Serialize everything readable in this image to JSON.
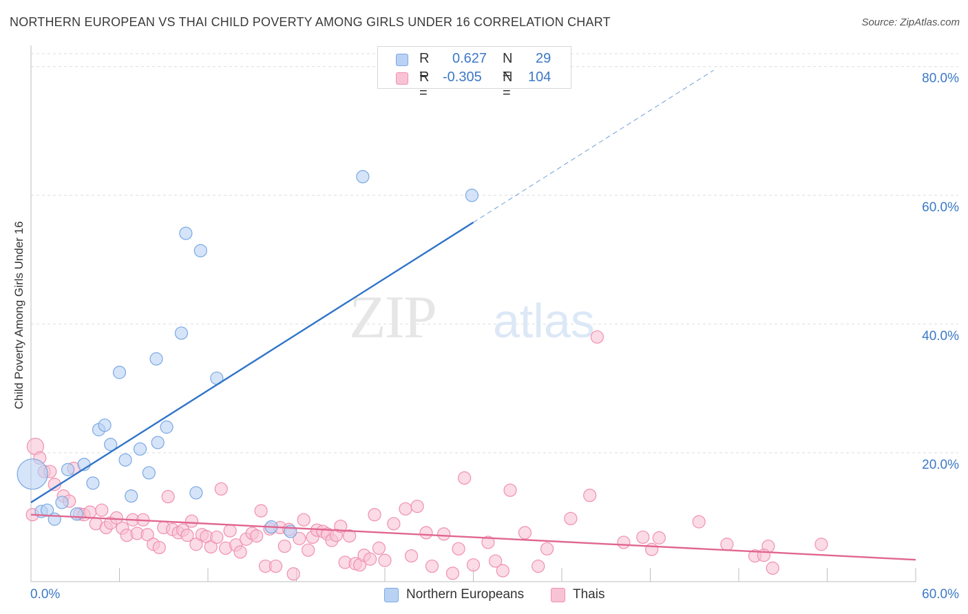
{
  "header": {
    "title": "NORTHERN EUROPEAN VS THAI CHILD POVERTY AMONG GIRLS UNDER 16 CORRELATION CHART",
    "source": "Source: ZipAtlas.com"
  },
  "watermark": {
    "zip": "ZIP",
    "atlas": "atlas"
  },
  "legend_stats": {
    "northern": {
      "r_label": "R =",
      "r_value": "0.627",
      "n_label": "N =",
      "n_value": "29"
    },
    "thai": {
      "r_label": "R =",
      "r_value": "-0.305",
      "n_label": "N =",
      "n_value": "104"
    }
  },
  "colors": {
    "northern_fill": "#b9d2f3",
    "northern_stroke": "#7aa8e3",
    "northern_line": "#2f74c8",
    "thai_fill": "#f8c3d4",
    "thai_stroke": "#f08fb0",
    "thai_line": "#e0668f",
    "axis_text": "#3b78c6",
    "grid": "#dcdcdc"
  },
  "chart_data": {
    "type": "scatter",
    "title": "NORTHERN EUROPEAN VS THAI CHILD POVERTY AMONG GIRLS UNDER 16 CORRELATION CHART",
    "xlabel": "",
    "ylabel": "Child Poverty Among Girls Under 16",
    "x_ticks": [
      "0.0%",
      "60.0%"
    ],
    "y_ticks": [
      "20.0%",
      "40.0%",
      "60.0%",
      "80.0%"
    ],
    "xlim": [
      0,
      60
    ],
    "ylim": [
      0,
      82
    ],
    "grid": true,
    "legend_placement": "bottom-center",
    "series": [
      {
        "name": "Northern Europeans",
        "trend": {
          "x0": 0,
          "y0": 12.3,
          "x1": 30,
          "y1": 55.8,
          "dashed_to_x": 46.3
        },
        "points": [
          [
            0.1,
            16.7,
            22
          ],
          [
            0.7,
            10.9,
            9
          ],
          [
            1.1,
            11.1,
            9
          ],
          [
            1.6,
            9.7,
            9
          ],
          [
            2.1,
            12.3,
            9
          ],
          [
            2.5,
            17.4,
            9
          ],
          [
            3.1,
            10.5,
            9
          ],
          [
            3.6,
            18.2,
            9
          ],
          [
            4.2,
            15.3,
            9
          ],
          [
            4.6,
            23.6,
            9
          ],
          [
            5.0,
            24.3,
            9
          ],
          [
            5.4,
            21.3,
            9
          ],
          [
            6.0,
            32.5,
            9
          ],
          [
            6.4,
            18.9,
            9
          ],
          [
            6.8,
            13.3,
            9
          ],
          [
            7.4,
            20.6,
            9
          ],
          [
            8.0,
            16.9,
            9
          ],
          [
            8.5,
            34.6,
            9
          ],
          [
            8.6,
            21.6,
            9
          ],
          [
            9.2,
            24.0,
            9
          ],
          [
            10.2,
            38.6,
            9
          ],
          [
            10.5,
            54.1,
            9
          ],
          [
            11.2,
            13.8,
            9
          ],
          [
            11.5,
            51.4,
            9
          ],
          [
            12.6,
            31.6,
            9
          ],
          [
            16.3,
            8.5,
            9
          ],
          [
            17.6,
            7.8,
            9
          ],
          [
            22.5,
            62.9,
            9
          ],
          [
            29.9,
            60.0,
            9
          ]
        ]
      },
      {
        "name": "Thais",
        "trend": {
          "x0": 0,
          "y0": 10.4,
          "x1": 60,
          "y1": 3.4
        },
        "points": [
          [
            0.3,
            21.0,
            12
          ],
          [
            0.6,
            19.2,
            9
          ],
          [
            0.9,
            17.1,
            9
          ],
          [
            1.3,
            17.1,
            9
          ],
          [
            1.6,
            15.1,
            9
          ],
          [
            2.2,
            13.3,
            9
          ],
          [
            2.6,
            12.5,
            9
          ],
          [
            2.9,
            17.6,
            9
          ],
          [
            3.3,
            10.5,
            9
          ],
          [
            3.6,
            10.4,
            9
          ],
          [
            4.0,
            10.8,
            9
          ],
          [
            4.4,
            9.0,
            9
          ],
          [
            4.8,
            11.1,
            9
          ],
          [
            5.1,
            8.4,
            9
          ],
          [
            5.4,
            9.1,
            9
          ],
          [
            5.8,
            9.9,
            9
          ],
          [
            6.2,
            8.3,
            9
          ],
          [
            6.5,
            7.2,
            9
          ],
          [
            6.9,
            9.6,
            9
          ],
          [
            7.2,
            7.5,
            9
          ],
          [
            7.6,
            9.6,
            9
          ],
          [
            7.9,
            7.3,
            9
          ],
          [
            8.3,
            5.8,
            9
          ],
          [
            8.7,
            5.3,
            9
          ],
          [
            9.0,
            8.4,
            9
          ],
          [
            9.3,
            13.2,
            9
          ],
          [
            9.6,
            8.1,
            9
          ],
          [
            10.0,
            7.6,
            9
          ],
          [
            10.3,
            8.0,
            9
          ],
          [
            10.6,
            7.2,
            9
          ],
          [
            10.9,
            9.4,
            9
          ],
          [
            11.2,
            5.8,
            9
          ],
          [
            11.6,
            7.3,
            9
          ],
          [
            11.9,
            7.0,
            9
          ],
          [
            12.2,
            5.4,
            9
          ],
          [
            12.6,
            6.9,
            9
          ],
          [
            12.9,
            14.4,
            9
          ],
          [
            13.2,
            5.2,
            9
          ],
          [
            13.5,
            7.9,
            9
          ],
          [
            13.9,
            5.7,
            9
          ],
          [
            14.2,
            4.6,
            9
          ],
          [
            14.6,
            6.6,
            9
          ],
          [
            15.0,
            7.5,
            9
          ],
          [
            15.3,
            7.1,
            9
          ],
          [
            15.6,
            11.0,
            9
          ],
          [
            15.9,
            2.4,
            9
          ],
          [
            16.2,
            8.2,
            9
          ],
          [
            16.6,
            2.4,
            9
          ],
          [
            16.9,
            8.4,
            9
          ],
          [
            17.2,
            5.5,
            9
          ],
          [
            17.5,
            8.1,
            9
          ],
          [
            17.8,
            1.2,
            9
          ],
          [
            18.2,
            6.7,
            9
          ],
          [
            18.5,
            9.6,
            9
          ],
          [
            18.8,
            4.9,
            9
          ],
          [
            19.1,
            6.9,
            9
          ],
          [
            19.4,
            8.0,
            9
          ],
          [
            19.8,
            7.8,
            9
          ],
          [
            20.1,
            7.4,
            9
          ],
          [
            20.4,
            6.4,
            9
          ],
          [
            20.7,
            7.2,
            9
          ],
          [
            21.0,
            8.6,
            9
          ],
          [
            21.3,
            3.0,
            9
          ],
          [
            21.6,
            7.1,
            9
          ],
          [
            22.0,
            2.8,
            9
          ],
          [
            22.3,
            2.6,
            9
          ],
          [
            22.6,
            4.1,
            9
          ],
          [
            23.0,
            3.5,
            9
          ],
          [
            23.3,
            10.4,
            9
          ],
          [
            23.6,
            5.2,
            9
          ],
          [
            24.0,
            3.3,
            9
          ],
          [
            24.6,
            9.0,
            9
          ],
          [
            25.4,
            11.3,
            9
          ],
          [
            25.8,
            4.0,
            9
          ],
          [
            26.2,
            11.7,
            9
          ],
          [
            26.8,
            7.6,
            9
          ],
          [
            27.2,
            2.4,
            9
          ],
          [
            28.0,
            7.4,
            9
          ],
          [
            28.6,
            1.3,
            9
          ],
          [
            29.0,
            5.1,
            9
          ],
          [
            29.4,
            16.1,
            9
          ],
          [
            30.0,
            2.6,
            9
          ],
          [
            31.0,
            6.1,
            9
          ],
          [
            31.5,
            3.2,
            9
          ],
          [
            32.0,
            1.7,
            9
          ],
          [
            32.5,
            14.2,
            9
          ],
          [
            33.5,
            7.6,
            9
          ],
          [
            34.4,
            2.4,
            9
          ],
          [
            35.0,
            5.1,
            9
          ],
          [
            36.6,
            9.8,
            9
          ],
          [
            37.9,
            13.4,
            9
          ],
          [
            38.4,
            38.0,
            9
          ],
          [
            40.2,
            6.1,
            9
          ],
          [
            41.5,
            6.9,
            9
          ],
          [
            42.1,
            5.0,
            9
          ],
          [
            42.6,
            6.8,
            9
          ],
          [
            45.3,
            9.3,
            9
          ],
          [
            47.2,
            5.8,
            9
          ],
          [
            49.1,
            4.0,
            9
          ],
          [
            50.0,
            5.5,
            9
          ],
          [
            49.7,
            4.1,
            9
          ],
          [
            50.3,
            2.1,
            9
          ],
          [
            53.6,
            5.8,
            9
          ],
          [
            0.1,
            10.4,
            9
          ]
        ]
      }
    ]
  }
}
